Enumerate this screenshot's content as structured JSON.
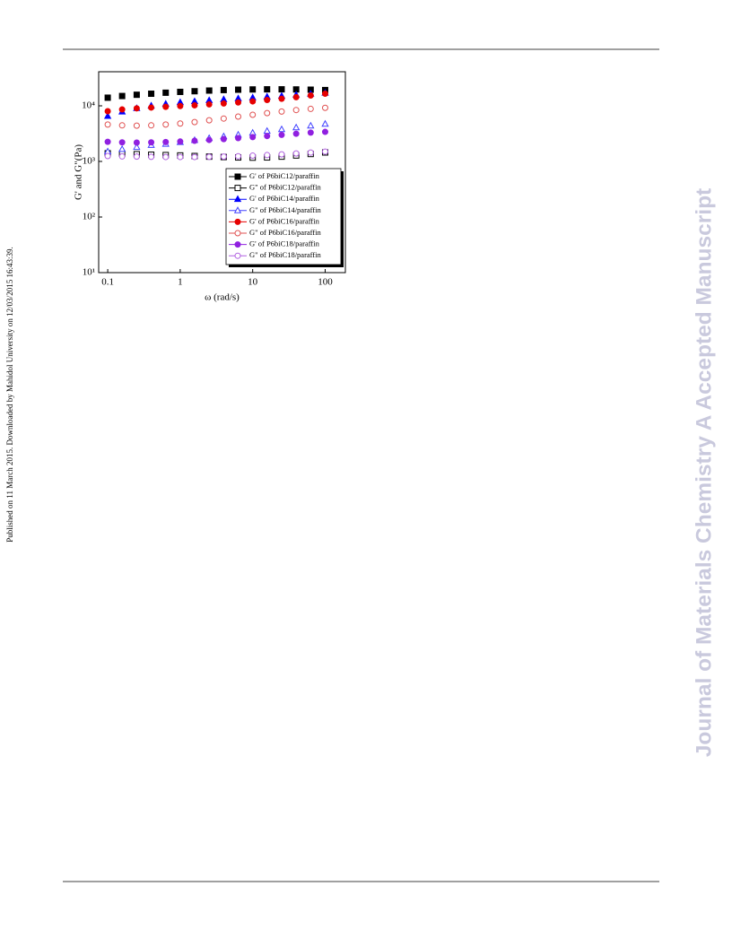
{
  "page": {
    "side_note": "Published on 11 March 2015. Downloaded by Mahidol University on 12/03/2015 16:43:39.",
    "watermark": "Journal of Materials Chemistry A Accepted Manuscript"
  },
  "chart_data": {
    "type": "scatter",
    "xlabel": "ω (rad/s)",
    "ylabel": "G' and G\"(Pa)",
    "xscale": "log",
    "yscale": "log",
    "legend": "lower right",
    "xlim": [
      0.075,
      190
    ],
    "ylim": [
      10,
      41000
    ],
    "xticks": [
      0.1,
      1,
      10,
      100
    ],
    "yticks": [
      {
        "value": 10,
        "label": "10¹"
      },
      {
        "value": 100,
        "label": "10²"
      },
      {
        "value": 1000,
        "label": "10³"
      },
      {
        "value": 10000,
        "label": "10⁴"
      }
    ],
    "x": [
      0.1,
      0.158,
      0.251,
      0.398,
      0.631,
      1,
      1.58,
      2.51,
      3.98,
      6.31,
      10,
      15.8,
      25.1,
      39.8,
      63.1,
      100
    ],
    "series": [
      {
        "name": "G' of P6biC12/paraffin",
        "color": "#000000",
        "marker": "square",
        "filled": true,
        "values": [
          14000,
          15000,
          15800,
          16500,
          17200,
          17800,
          18300,
          18800,
          19200,
          19500,
          19700,
          19800,
          19800,
          19700,
          19500,
          19200
        ]
      },
      {
        "name": "G\" of P6biC12/paraffin",
        "color": "#000000",
        "marker": "square",
        "filled": false,
        "values": [
          1400,
          1380,
          1350,
          1320,
          1300,
          1280,
          1250,
          1220,
          1200,
          1180,
          1170,
          1180,
          1220,
          1280,
          1360,
          1450
        ]
      },
      {
        "name": "G' of P6biC14/paraffin",
        "color": "#0000ff",
        "marker": "triangle",
        "filled": true,
        "values": [
          6500,
          7800,
          9000,
          10000,
          10800,
          11500,
          12000,
          12500,
          13000,
          13500,
          14000,
          14500,
          15000,
          15700,
          16300,
          17000
        ]
      },
      {
        "name": "G\" of P6biC14/paraffin",
        "color": "#4040ff",
        "marker": "triangle",
        "filled": false,
        "values": [
          1500,
          1650,
          1800,
          1950,
          2050,
          2200,
          2400,
          2600,
          2800,
          3000,
          3250,
          3500,
          3750,
          4050,
          4350,
          4700
        ]
      },
      {
        "name": "G' of P6biC16/paraffin",
        "color": "#e60000",
        "marker": "circle",
        "filled": true,
        "values": [
          8000,
          8600,
          9000,
          9300,
          9600,
          9900,
          10200,
          10600,
          11000,
          11500,
          12000,
          12700,
          13400,
          14300,
          15300,
          16500
        ]
      },
      {
        "name": "G\" of P6biC16/paraffin",
        "color": "#e05050",
        "marker": "circle",
        "filled": false,
        "values": [
          4600,
          4450,
          4400,
          4450,
          4600,
          4800,
          5100,
          5500,
          5900,
          6400,
          6900,
          7400,
          7900,
          8400,
          8800,
          9200
        ]
      },
      {
        "name": "G' of P6biC18/paraffin",
        "color": "#9020e0",
        "marker": "circle",
        "filled": true,
        "values": [
          2250,
          2200,
          2180,
          2200,
          2230,
          2280,
          2350,
          2430,
          2520,
          2620,
          2740,
          2860,
          3000,
          3150,
          3300,
          3400
        ]
      },
      {
        "name": "G\" of P6biC18/paraffin",
        "color": "#b060e0",
        "marker": "circle",
        "filled": false,
        "values": [
          1250,
          1230,
          1220,
          1210,
          1200,
          1200,
          1200,
          1210,
          1220,
          1240,
          1270,
          1300,
          1340,
          1390,
          1440,
          1500
        ]
      }
    ]
  }
}
